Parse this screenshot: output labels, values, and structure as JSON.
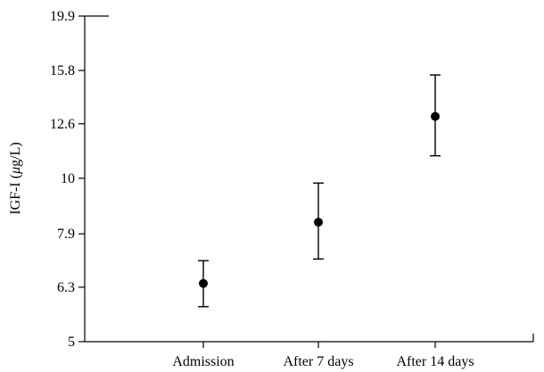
{
  "chart_data": {
    "type": "scatter",
    "title": "",
    "ylabel_prefix": "IGF-I (",
    "ylabel_unit_mu": "μ",
    "ylabel_suffix": "g/L)",
    "xlabel": "",
    "y_scale": "log",
    "ylim": [
      5,
      19.9
    ],
    "yticks": [
      5,
      6.3,
      7.9,
      10,
      12.6,
      15.8,
      19.9
    ],
    "ytick_labels": [
      "5",
      "6.3",
      "7.9",
      "10",
      "12.6",
      "15.8",
      "19.9"
    ],
    "categories": [
      "Admission",
      "After 7 days",
      "After 14 days"
    ],
    "values": [
      6.4,
      8.3,
      13.0
    ],
    "error_low": [
      5.8,
      7.1,
      11.0
    ],
    "error_high": [
      7.05,
      9.8,
      15.5
    ],
    "grid": false,
    "legend": false
  }
}
